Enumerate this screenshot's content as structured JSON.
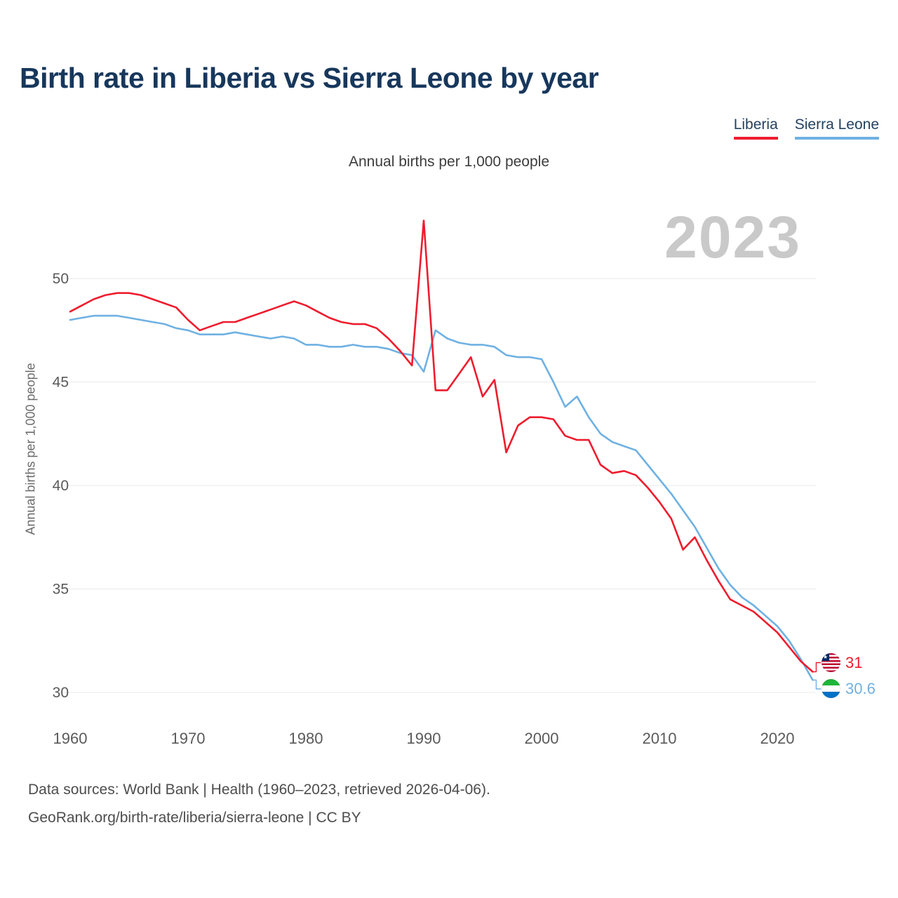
{
  "header": {
    "title": "Birth rate in Liberia vs Sierra Leone by year"
  },
  "legend": {
    "items": [
      {
        "label": "Liberia",
        "color": "#ee1c2e"
      },
      {
        "label": "Sierra Leone",
        "color": "#6fb1e2"
      }
    ]
  },
  "chart": {
    "subtitle": "Annual births per 1,000 people",
    "watermark": "2023",
    "ylabel": "Annual births per 1,000 people",
    "end_labels": {
      "liberia": "31",
      "sierra_leone": "30.6"
    }
  },
  "chart_data": {
    "type": "line",
    "title": "Birth rate in Liberia vs Sierra Leone by year",
    "subtitle": "Annual births per 1,000 people",
    "xlabel": "",
    "ylabel": "Annual births per 1,000 people",
    "xlim": [
      1960,
      2023
    ],
    "ylim": [
      29.5,
      53.5
    ],
    "grid": "horizontal",
    "legend_position": "top-right",
    "xticks": [
      1960,
      1970,
      1980,
      1990,
      2000,
      2010,
      2020
    ],
    "yticks": [
      30,
      35,
      40,
      45,
      50
    ],
    "x": [
      1960,
      1961,
      1962,
      1963,
      1964,
      1965,
      1966,
      1967,
      1968,
      1969,
      1970,
      1971,
      1972,
      1973,
      1974,
      1975,
      1976,
      1977,
      1978,
      1979,
      1980,
      1981,
      1982,
      1983,
      1984,
      1985,
      1986,
      1987,
      1988,
      1989,
      1990,
      1991,
      1992,
      1993,
      1994,
      1995,
      1996,
      1997,
      1998,
      1999,
      2000,
      2001,
      2002,
      2003,
      2004,
      2005,
      2006,
      2007,
      2008,
      2009,
      2010,
      2011,
      2012,
      2013,
      2014,
      2015,
      2016,
      2017,
      2018,
      2019,
      2020,
      2021,
      2022,
      2023
    ],
    "series": [
      {
        "name": "Liberia",
        "color": "#ee1c2e",
        "values": [
          48.4,
          48.7,
          49.0,
          49.2,
          49.3,
          49.3,
          49.2,
          49.0,
          48.8,
          48.6,
          48.0,
          47.5,
          47.7,
          47.9,
          47.9,
          48.1,
          48.3,
          48.5,
          48.7,
          48.9,
          48.7,
          48.4,
          48.1,
          47.9,
          47.8,
          47.8,
          47.6,
          47.1,
          46.5,
          45.8,
          52.8,
          44.6,
          44.6,
          45.4,
          46.2,
          44.3,
          45.1,
          41.6,
          42.9,
          43.3,
          43.3,
          43.2,
          42.4,
          42.2,
          42.2,
          41.0,
          40.6,
          40.7,
          40.5,
          39.9,
          39.2,
          38.4,
          36.9,
          37.5,
          36.4,
          35.4,
          34.5,
          34.2,
          33.9,
          33.4,
          32.9,
          32.2,
          31.5,
          31.0
        ]
      },
      {
        "name": "Sierra Leone",
        "color": "#6fb1e2",
        "values": [
          48.0,
          48.1,
          48.2,
          48.2,
          48.2,
          48.1,
          48.0,
          47.9,
          47.8,
          47.6,
          47.5,
          47.3,
          47.3,
          47.3,
          47.4,
          47.3,
          47.2,
          47.1,
          47.2,
          47.1,
          46.8,
          46.8,
          46.7,
          46.7,
          46.8,
          46.7,
          46.7,
          46.6,
          46.4,
          46.3,
          45.5,
          47.5,
          47.1,
          46.9,
          46.8,
          46.8,
          46.7,
          46.3,
          46.2,
          46.2,
          46.1,
          45.0,
          43.8,
          44.3,
          43.3,
          42.5,
          42.1,
          41.9,
          41.7,
          41.0,
          40.3,
          39.6,
          38.8,
          38.0,
          37.0,
          36.0,
          35.2,
          34.6,
          34.2,
          33.7,
          33.2,
          32.5,
          31.6,
          30.6
        ]
      }
    ]
  },
  "footer": {
    "line1": "Data sources: World Bank | Health (1960–2023, retrieved 2026-04-06).",
    "line2": "GeoRank.org/birth-rate/liberia/sierra-leone | CC BY"
  }
}
